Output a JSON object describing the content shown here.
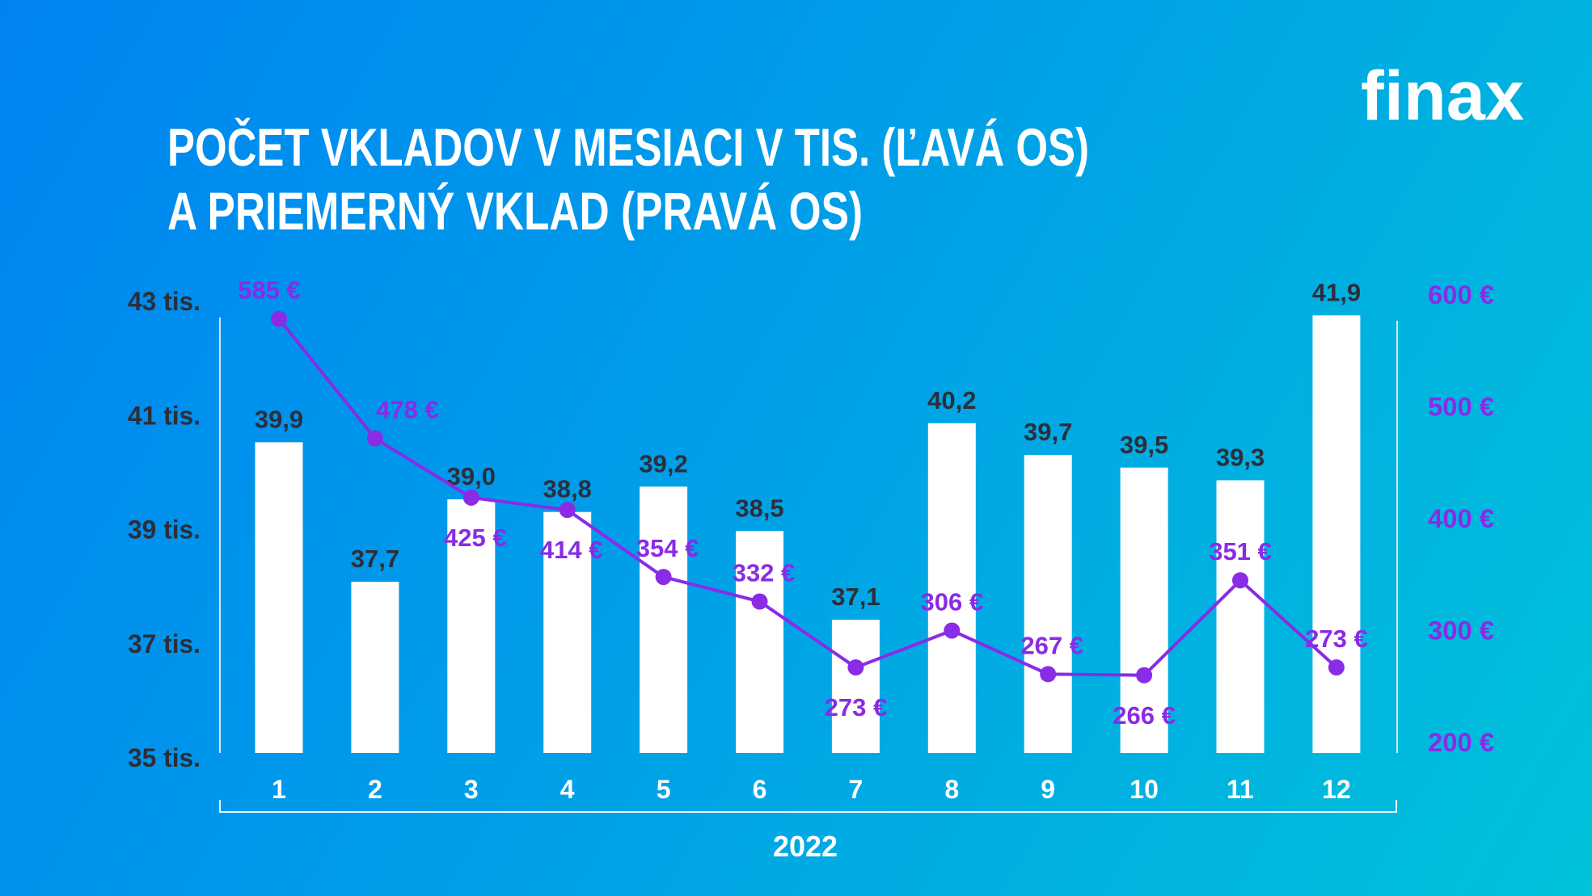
{
  "logo": {
    "text": "finax"
  },
  "chart_data": {
    "type": "bar+line",
    "title_lines": [
      "POČET VKLADOV V MESIACI V TIS. (ĽAVÁ OS)",
      "A PRIEMERNÝ VKLAD (PRAVÁ OS)"
    ],
    "xlabel": "2022",
    "categories": [
      "1",
      "2",
      "3",
      "4",
      "5",
      "6",
      "7",
      "8",
      "9",
      "10",
      "11",
      "12"
    ],
    "left_axis": {
      "ticks": [
        "43 tis.",
        "41 tis.",
        "39 tis.",
        "37 tis.",
        "35 tis."
      ],
      "tick_values": [
        43,
        41,
        39,
        37,
        35
      ],
      "ylim": [
        35,
        43
      ]
    },
    "right_axis": {
      "ticks": [
        "600 €",
        "500 €",
        "400 €",
        "300 €",
        "200 €"
      ],
      "tick_values": [
        600,
        500,
        400,
        300,
        200
      ],
      "ylim": [
        200,
        600
      ]
    },
    "series": [
      {
        "type": "bar",
        "axis": "left",
        "values": [
          39.9,
          37.7,
          39.0,
          38.8,
          39.2,
          38.5,
          37.1,
          40.2,
          39.7,
          39.5,
          39.3,
          41.9
        ],
        "labels": [
          "39,9",
          "37,7",
          "39,0",
          "38,8",
          "39,2",
          "38,5",
          "37,1",
          "40,2",
          "39,7",
          "39,5",
          "39,3",
          "41,9"
        ],
        "color": "#ffffff"
      },
      {
        "type": "line",
        "axis": "right",
        "values": [
          585,
          478,
          425,
          414,
          354,
          332,
          273,
          306,
          267,
          266,
          351,
          273
        ],
        "labels": [
          "585 €",
          "478 €",
          "425 €",
          "414 €",
          "354 €",
          "332 €",
          "273 €",
          "306 €",
          "267 €",
          "266 €",
          "351 €",
          "273 €"
        ],
        "color": "#8a2be6"
      }
    ],
    "grid": false,
    "bar_label_color": "#2b2f3a"
  }
}
